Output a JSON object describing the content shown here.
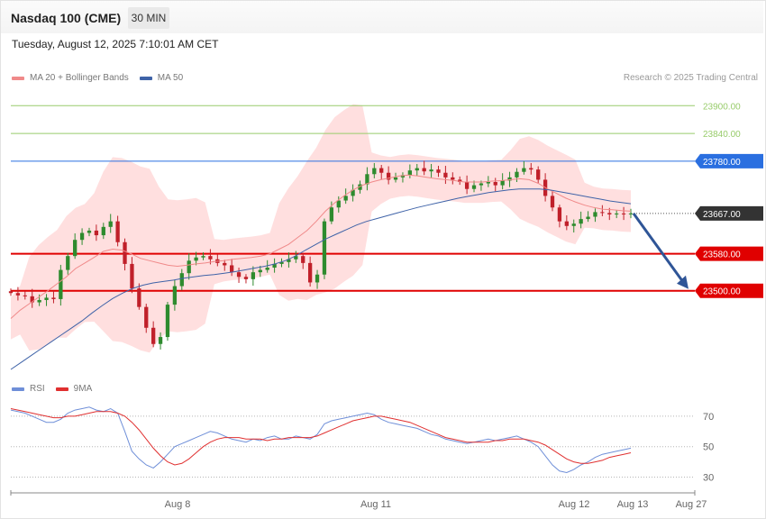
{
  "header": {
    "title": "Nasdaq 100 (CME)",
    "timeframe": "30 MIN",
    "datetime": "Tuesday, August 12, 2025 7:10:01 AM CET",
    "credit": "Research © 2025 Trading Central"
  },
  "legend": {
    "ma20": "MA 20 + Bollinger Bands",
    "ma50": "MA 50",
    "rsi": "RSI",
    "ma9": "9MA"
  },
  "colors": {
    "bull": "#2e8b2e",
    "bear": "#c0202a",
    "bollinger_fill": "#ffd9d9",
    "ma20": "#f08a8a",
    "ma50": "#3f63a8",
    "support": "#e00000",
    "resistance": "#2a6fe0",
    "target_green": "#98cc6b",
    "arrow": "#2f5597",
    "current": "#333333",
    "rsi": "#6f8fd8",
    "rsi_ma": "#e03030"
  },
  "chart_data": [
    {
      "type": "candlestick",
      "title": "Nasdaq 100 (CME)",
      "timeframe": "30 MIN",
      "x_labels": [
        "Aug 8",
        "Aug 11",
        "Aug 12",
        "Aug 13",
        "Aug 27"
      ],
      "ylim": [
        23330,
        23920
      ],
      "levels": [
        {
          "value": 23900.0,
          "label": "23900.00",
          "kind": "target"
        },
        {
          "value": 23840.0,
          "label": "23840.00",
          "kind": "target"
        },
        {
          "value": 23780.0,
          "label": "23780.00",
          "kind": "resistance"
        },
        {
          "value": 23667.0,
          "label": "23667.00",
          "kind": "current"
        },
        {
          "value": 23580.0,
          "label": "23580.00",
          "kind": "support"
        },
        {
          "value": 23500.0,
          "label": "23500.00",
          "kind": "support"
        }
      ],
      "series": [
        {
          "name": "Price",
          "values": [
            23495,
            23490,
            23488,
            23475,
            23480,
            23485,
            23482,
            23545,
            23575,
            23610,
            23625,
            23630,
            23620,
            23638,
            23650,
            23605,
            23558,
            23505,
            23465,
            23420,
            23385,
            23400,
            23470,
            23510,
            23538,
            23565,
            23572,
            23575,
            23568,
            23560,
            23555,
            23540,
            23530,
            23525,
            23540,
            23545,
            23550,
            23558,
            23562,
            23568,
            23575,
            23560,
            23518,
            23535,
            23650,
            23680,
            23695,
            23705,
            23718,
            23730,
            23752,
            23765,
            23755,
            23740,
            23745,
            23750,
            23760,
            23765,
            23758,
            23762,
            23755,
            23745,
            23740,
            23735,
            23720,
            23728,
            23732,
            23735,
            23728,
            23738,
            23745,
            23757,
            23765,
            23762,
            23740,
            23705,
            23680,
            23650,
            23640,
            23645,
            23655,
            23660,
            23670,
            23668,
            23665,
            23667,
            23666,
            23667
          ]
        },
        {
          "name": "MA 20",
          "values": [
            23440,
            23458,
            23472,
            23486,
            23500,
            23515,
            23530,
            23548,
            23560,
            23572,
            23585,
            23590,
            23588,
            23580,
            23570,
            23565,
            23560,
            23555,
            23553,
            23555,
            23558,
            23560,
            23563,
            23565,
            23568,
            23570,
            23572,
            23575,
            23580,
            23590,
            23600,
            23615,
            23630,
            23650,
            23672,
            23690,
            23705,
            23718,
            23728,
            23735,
            23740,
            23744,
            23748,
            23750,
            23748,
            23745,
            23742,
            23740,
            23738,
            23735,
            23735,
            23735,
            23737,
            23738,
            23740,
            23742,
            23740,
            23732,
            23720,
            23710,
            23700,
            23692,
            23685,
            23680,
            23676,
            23675,
            23673,
            23672
          ]
        },
        {
          "name": "MA 50",
          "values": [
            23330,
            23345,
            23360,
            23375,
            23390,
            23405,
            23420,
            23435,
            23452,
            23468,
            23483,
            23495,
            23505,
            23512,
            23517,
            23520,
            23523,
            23527,
            23530,
            23533,
            23535,
            23538,
            23541,
            23545,
            23549,
            23553,
            23558,
            23565,
            23575,
            23588,
            23600,
            23612,
            23622,
            23632,
            23642,
            23650,
            23656,
            23662,
            23668,
            23674,
            23680,
            23685,
            23690,
            23695,
            23700,
            23704,
            23708,
            23712,
            23715,
            23718,
            23720,
            23720,
            23720,
            23718,
            23714,
            23710,
            23706,
            23702,
            23698,
            23694,
            23691,
            23688
          ]
        }
      ]
    },
    {
      "type": "line",
      "title": "RSI",
      "ylim": [
        25,
        80
      ],
      "reference_levels": [
        70,
        50,
        30
      ],
      "series": [
        {
          "name": "RSI",
          "values": [
            74,
            73,
            72,
            70,
            68,
            66,
            66,
            68,
            72,
            74,
            75,
            76,
            74,
            73,
            75,
            72,
            60,
            47,
            42,
            38,
            36,
            40,
            45,
            50,
            52,
            54,
            56,
            58,
            60,
            59,
            57,
            55,
            54,
            53,
            55,
            54,
            56,
            57,
            55,
            55,
            57,
            56,
            55,
            58,
            65,
            67,
            68,
            69,
            70,
            71,
            72,
            71,
            68,
            66,
            65,
            64,
            63,
            62,
            60,
            58,
            57,
            55,
            54,
            53,
            52,
            53,
            54,
            55,
            54,
            55,
            56,
            57,
            55,
            53,
            50,
            44,
            38,
            34,
            33,
            35,
            38,
            40,
            43,
            45,
            46,
            47,
            48,
            49
          ]
        },
        {
          "name": "9MA",
          "values": [
            75,
            74,
            73,
            72,
            71,
            70,
            69,
            69,
            70,
            70,
            71,
            72,
            73,
            73,
            73,
            72,
            70,
            66,
            61,
            55,
            49,
            44,
            40,
            38,
            39,
            42,
            46,
            50,
            53,
            55,
            56,
            56,
            56,
            55,
            55,
            55,
            54,
            55,
            55,
            56,
            56,
            56,
            56,
            57,
            59,
            61,
            63,
            65,
            67,
            68,
            69,
            70,
            70,
            69,
            68,
            67,
            66,
            64,
            62,
            60,
            58,
            56,
            55,
            54,
            53,
            53,
            53,
            53,
            54,
            54,
            55,
            55,
            55,
            54,
            53,
            51,
            48,
            45,
            42,
            40,
            39,
            39,
            40,
            41,
            43,
            44,
            45,
            46
          ]
        }
      ]
    }
  ]
}
